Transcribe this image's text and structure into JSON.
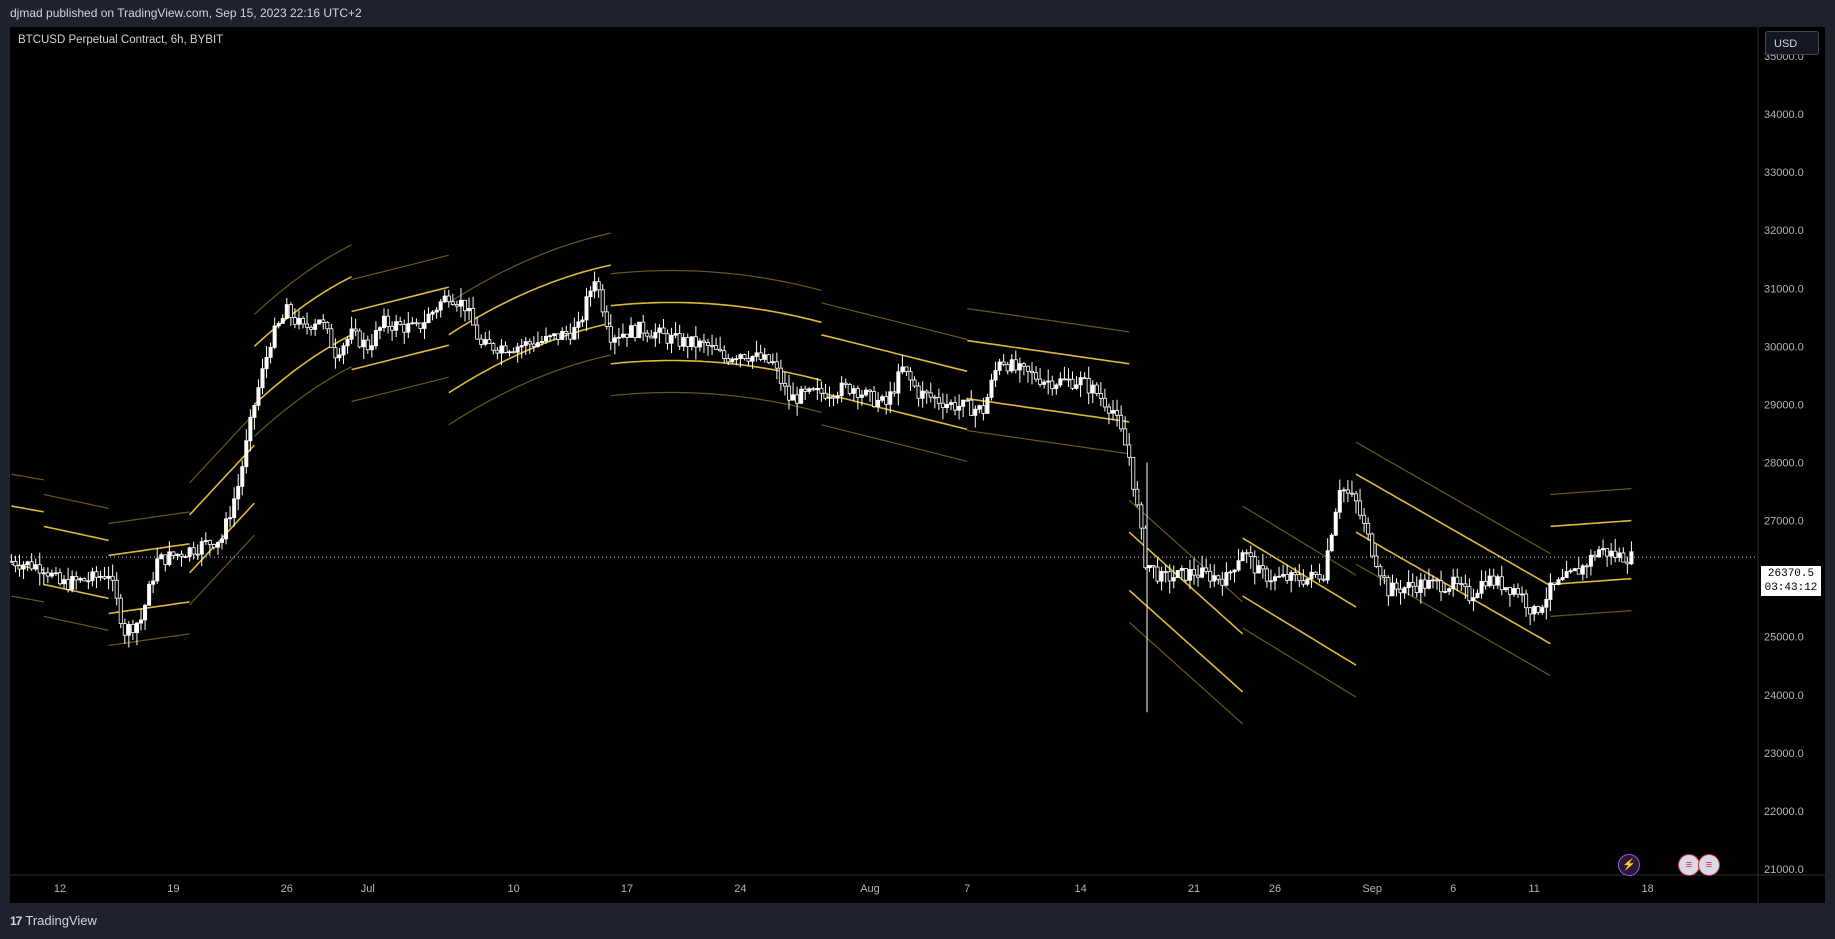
{
  "header": {
    "attribution": "djmad published on TradingView.com, Sep 15, 2023 22:16 UTC+2"
  },
  "symbol": {
    "title": "BTCUSD Perpetual Contract, 6h, BYBIT"
  },
  "currency": "USD",
  "last_price": {
    "value": "26370.5",
    "countdown": "03:43:12"
  },
  "footer": {
    "brand": "TradingView"
  },
  "colors": {
    "background": "#000000",
    "band": "#e8c33a",
    "candle": "#ffffff",
    "axis_text": "#b2b5be"
  },
  "icons": [
    "lightning-icon",
    "us-flag-icon",
    "us-flag-icon"
  ],
  "chart_data": {
    "type": "candlestick",
    "title": "BTCUSD Perpetual Contract, 6h, BYBIT",
    "ylim": [
      21000,
      35500
    ],
    "y_ticks": [
      "35000.0",
      "34000.0",
      "33000.0",
      "32000.0",
      "31000.0",
      "30000.0",
      "29000.0",
      "28000.0",
      "27000.0",
      "26000.0",
      "25000.0",
      "24000.0",
      "23000.0",
      "22000.0",
      "21000.0"
    ],
    "x_ticks": [
      {
        "label": "12",
        "day": 0
      },
      {
        "label": "19",
        "day": 7
      },
      {
        "label": "26",
        "day": 14
      },
      {
        "label": "Jul",
        "day": 19
      },
      {
        "label": "10",
        "day": 28
      },
      {
        "label": "17",
        "day": 35
      },
      {
        "label": "24",
        "day": 42
      },
      {
        "label": "Aug",
        "day": 50
      },
      {
        "label": "7",
        "day": 56
      },
      {
        "label": "14",
        "day": 63
      },
      {
        "label": "21",
        "day": 70
      },
      {
        "label": "26",
        "day": 75
      },
      {
        "label": "Sep",
        "day": 81
      },
      {
        "label": "6",
        "day": 86
      },
      {
        "label": "11",
        "day": 91
      },
      {
        "label": "18",
        "day": 98
      }
    ],
    "last_price": 26370.5,
    "price_path": [
      [
        -3,
        26300
      ],
      [
        -1,
        26200
      ],
      [
        0,
        25900
      ],
      [
        2,
        26000
      ],
      [
        3,
        26100
      ],
      [
        4,
        25100
      ],
      [
        5,
        25300
      ],
      [
        6,
        26300
      ],
      [
        8,
        26500
      ],
      [
        10,
        26700
      ],
      [
        11,
        27600
      ],
      [
        12,
        29000
      ],
      [
        13,
        30100
      ],
      [
        14,
        30600
      ],
      [
        15,
        30300
      ],
      [
        16,
        30500
      ],
      [
        17,
        29900
      ],
      [
        18,
        30200
      ],
      [
        19,
        30000
      ],
      [
        20,
        30400
      ],
      [
        22,
        30300
      ],
      [
        24,
        30900
      ],
      [
        25,
        30700
      ],
      [
        26,
        30000
      ],
      [
        28,
        30000
      ],
      [
        30,
        30100
      ],
      [
        32,
        30300
      ],
      [
        33,
        31200
      ],
      [
        34,
        30200
      ],
      [
        36,
        30300
      ],
      [
        38,
        30100
      ],
      [
        40,
        30000
      ],
      [
        41,
        29800
      ],
      [
        42,
        29900
      ],
      [
        44,
        29700
      ],
      [
        45,
        29100
      ],
      [
        47,
        29200
      ],
      [
        49,
        29300
      ],
      [
        50,
        29100
      ],
      [
        51,
        29000
      ],
      [
        52,
        29600
      ],
      [
        53,
        29200
      ],
      [
        55,
        29000
      ],
      [
        57,
        28900
      ],
      [
        58,
        29800
      ],
      [
        59,
        29600
      ],
      [
        61,
        29400
      ],
      [
        63,
        29400
      ],
      [
        64,
        29200
      ],
      [
        65,
        28900
      ],
      [
        66,
        28100
      ],
      [
        67,
        26300
      ],
      [
        68,
        26000
      ],
      [
        70,
        26100
      ],
      [
        72,
        26000
      ],
      [
        73,
        26500
      ],
      [
        74,
        26100
      ],
      [
        75,
        26000
      ],
      [
        77,
        26000
      ],
      [
        78,
        26100
      ],
      [
        79,
        27600
      ],
      [
        80,
        27300
      ],
      [
        81,
        26500
      ],
      [
        82,
        25800
      ],
      [
        84,
        25900
      ],
      [
        86,
        25900
      ],
      [
        87,
        25700
      ],
      [
        88,
        26000
      ],
      [
        89,
        25900
      ],
      [
        90,
        25800
      ],
      [
        91,
        25400
      ],
      [
        92,
        25800
      ],
      [
        93,
        26000
      ],
      [
        94,
        26200
      ],
      [
        95,
        26500
      ],
      [
        96,
        26400
      ],
      [
        97,
        26370
      ]
    ],
    "envelope_bands": [
      {
        "from": -3,
        "to": -1,
        "mid_start": 26750,
        "slope": -50,
        "curv": 0
      },
      {
        "from": -1,
        "to": 3,
        "mid_start": 26400,
        "slope": -60,
        "curv": 0
      },
      {
        "from": 3,
        "to": 8,
        "mid_start": 25900,
        "slope": 40,
        "curv": 0
      },
      {
        "from": 8,
        "to": 12,
        "mid_start": 26600,
        "slope": 300,
        "curv": 0
      },
      {
        "from": 12,
        "to": 18,
        "mid_start": 29500,
        "slope": 260,
        "curv": -10
      },
      {
        "from": 18,
        "to": 24,
        "mid_start": 30100,
        "slope": 70,
        "curv": 0
      },
      {
        "from": 24,
        "to": 34,
        "mid_start": 29700,
        "slope": 180,
        "curv": -6
      },
      {
        "from": 34,
        "to": 47,
        "mid_start": 30200,
        "slope": 30,
        "curv": -4
      },
      {
        "from": 47,
        "to": 56,
        "mid_start": 29700,
        "slope": -70,
        "curv": 0
      },
      {
        "from": 56,
        "to": 66,
        "mid_start": 29600,
        "slope": -40,
        "curv": 0
      },
      {
        "from": 66,
        "to": 73,
        "mid_start": 26300,
        "slope": -250,
        "curv": 0
      },
      {
        "from": 73,
        "to": 80,
        "mid_start": 26200,
        "slope": -170,
        "curv": 0
      },
      {
        "from": 80,
        "to": 92,
        "mid_start": 27300,
        "slope": -160,
        "curv": 0
      },
      {
        "from": 92,
        "to": 97,
        "mid_start": 26400,
        "slope": 20,
        "curv": 0
      }
    ]
  }
}
